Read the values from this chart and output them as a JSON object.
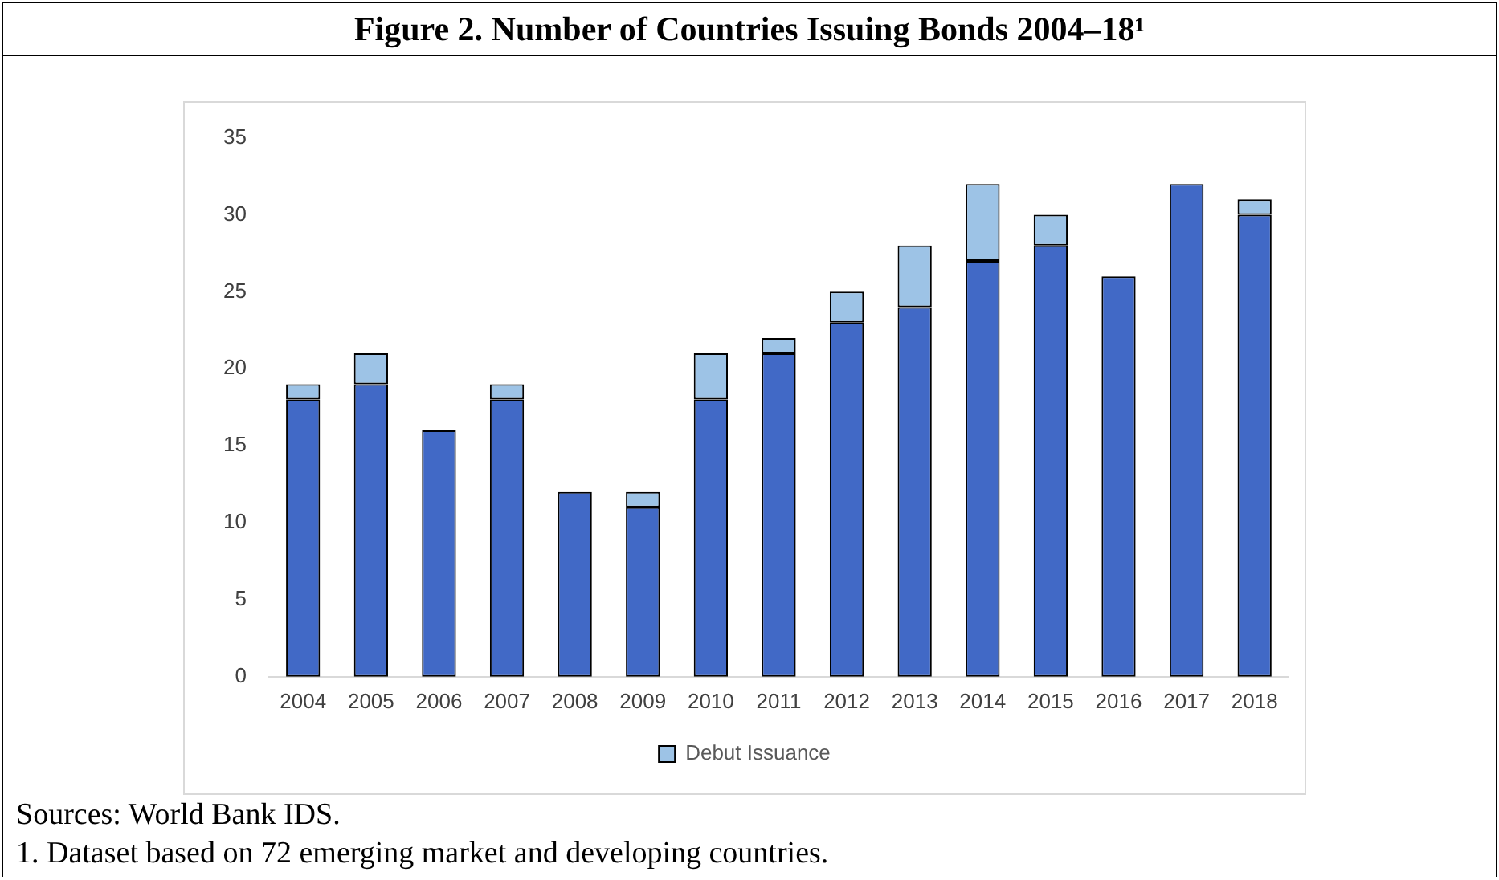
{
  "chart_data": {
    "type": "bar",
    "title": "Figure 2. Number of Countries Issuing Bonds 2004–18¹",
    "categories": [
      "2004",
      "2005",
      "2006",
      "2007",
      "2008",
      "2009",
      "2010",
      "2011",
      "2012",
      "2013",
      "2014",
      "2015",
      "2016",
      "2017",
      "2018"
    ],
    "stacked": true,
    "series": [
      {
        "color": "#4169c6",
        "values": [
          18,
          19,
          16,
          18,
          12,
          11,
          18,
          21,
          23,
          24,
          27,
          28,
          26,
          32,
          30
        ]
      },
      {
        "name": "Debut Issuance",
        "color": "#9dc3e6",
        "values": [
          1,
          2,
          0,
          1,
          0,
          1,
          3,
          1,
          2,
          4,
          5,
          2,
          0,
          0,
          1
        ]
      }
    ],
    "ylim": [
      0,
      35
    ],
    "yticks": [
      0,
      5,
      10,
      15,
      20,
      25,
      30,
      35
    ],
    "grid": false,
    "legend": "bottom",
    "annotations": [
      "Sources: World Bank IDS.",
      "1. Dataset based on 72 emerging market and developing countries."
    ]
  }
}
